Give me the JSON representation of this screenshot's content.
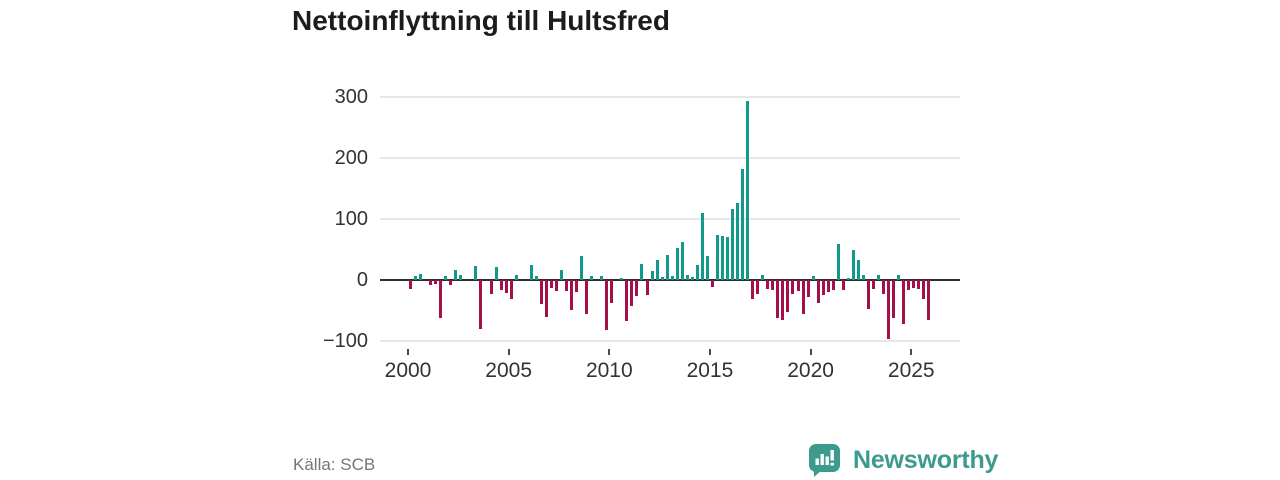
{
  "title": "Nettoinflyttning till Hultsfred",
  "footer": {
    "source_label": "Källa: SCB"
  },
  "branding": {
    "name": "Newsworthy"
  },
  "colors": {
    "positive": "#12998b",
    "negative": "#a3104a",
    "grid": "#e7e7e7",
    "zero_line": "#2e2e2e",
    "axis_text": "#333333",
    "source_text": "#767676",
    "brand": "#3d9b8e",
    "title_text": "#1c1c1c"
  },
  "chart_data": {
    "type": "bar",
    "title": "Nettoinflyttning till Hultsfred",
    "xlabel": "",
    "ylabel": "",
    "frequency": "quarterly",
    "start": "2000-Q1",
    "end": "2025-Q4",
    "ylim": [
      -100,
      300
    ],
    "grid": true,
    "legend": "none",
    "yticks": [
      300,
      200,
      100,
      0,
      -100
    ],
    "ytick_labels": [
      "300",
      "200",
      "100",
      "0",
      "−100"
    ],
    "xtick_years": [
      2000,
      2005,
      2010,
      2015,
      2020,
      2025
    ],
    "xtick_labels": [
      "2000",
      "2005",
      "2010",
      "2015",
      "2020",
      "2025"
    ],
    "values": [
      -14,
      7,
      10,
      0,
      -9,
      -7,
      -62,
      7,
      -8,
      17,
      8,
      0,
      0,
      23,
      -80,
      0,
      -23,
      21,
      -17,
      -21,
      -31,
      8,
      0,
      0,
      25,
      7,
      -39,
      -60,
      -13,
      -18,
      16,
      -18,
      -49,
      -19,
      40,
      -55,
      6,
      0,
      6,
      -82,
      -37,
      0,
      4,
      -68,
      -42,
      -26,
      26,
      -24,
      15,
      32,
      5,
      41,
      7,
      52,
      63,
      9,
      5,
      24,
      110,
      39,
      -11,
      74,
      72,
      71,
      116,
      126,
      182,
      293,
      -31,
      -23,
      8,
      -15,
      -17,
      -62,
      -66,
      -53,
      -23,
      -18,
      -55,
      -28,
      6,
      -37,
      -24,
      -20,
      -16,
      59,
      -16,
      4,
      50,
      33,
      9,
      -48,
      -15,
      8,
      -23,
      -97,
      -63,
      9,
      -72,
      -17,
      -13,
      -15,
      -31,
      -65
    ]
  }
}
